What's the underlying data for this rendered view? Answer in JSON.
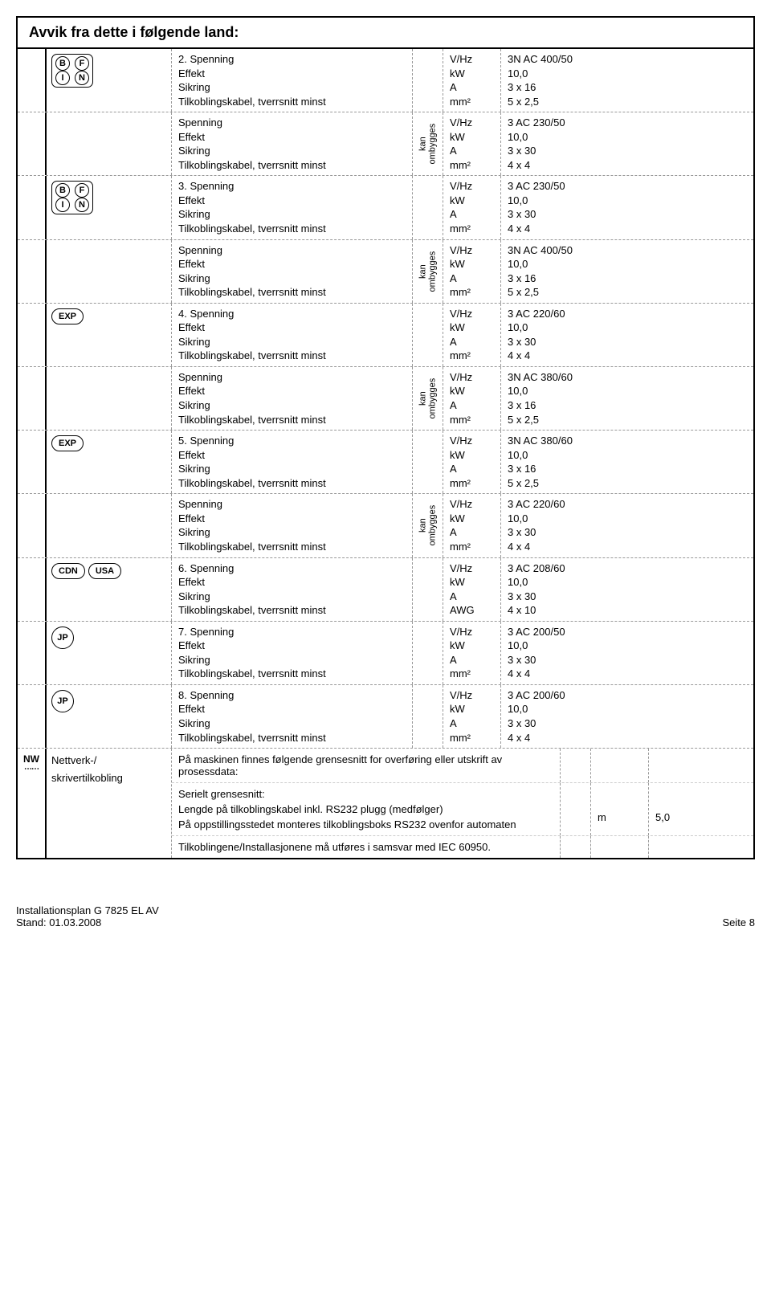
{
  "title": "Avvik fra dette i følgende land:",
  "footer": {
    "left1": "Installationsplan G 7825 EL AV",
    "left2": "Stand: 01.03.2008",
    "right": "Seite 8"
  },
  "labelset": {
    "spenning": "Spenning",
    "effekt": "Effekt",
    "sikring": "Sikring",
    "tilk": "Tilkoblingskabel, tverrsnitt minst"
  },
  "units": {
    "vhz": "V/Hz",
    "kw": "kW",
    "a": "A",
    "mm2": "mm²",
    "awg": "AWG",
    "m": "m"
  },
  "rot": {
    "l1": "kan",
    "l2": "ombygges"
  },
  "rows": [
    {
      "num": "2.",
      "badges_bfin": true,
      "v": {
        "r1": "3N AC 400/50",
        "r2": "10,0",
        "r3": "3 x 16",
        "r4": "5 x 2,5"
      }
    },
    {
      "alt": true,
      "v": {
        "r1": "3 AC 230/50",
        "r2": "10,0",
        "r3": "3 x 30",
        "r4": "4 x 4"
      }
    },
    {
      "num": "3.",
      "badges_bfin": true,
      "v": {
        "r1": "3 AC 230/50",
        "r2": "10,0",
        "r3": "3 x 30",
        "r4": "4 x 4"
      }
    },
    {
      "alt": true,
      "v": {
        "r1": "3N AC 400/50",
        "r2": "10,0",
        "r3": "3 x 16",
        "r4": "5 x 2,5"
      }
    },
    {
      "num": "4.",
      "badge_oval": "EXP",
      "v": {
        "r1": "3 AC 220/60",
        "r2": "10,0",
        "r3": "3 x 30",
        "r4": "4 x 4"
      }
    },
    {
      "alt": true,
      "v": {
        "r1": "3N AC 380/60",
        "r2": "10,0",
        "r3": "3 x 16",
        "r4": "5 x 2,5"
      }
    },
    {
      "num": "5.",
      "badge_oval": "EXP",
      "v": {
        "r1": "3N AC 380/60",
        "r2": "10,0",
        "r3": "3 x 16",
        "r4": "5 x 2,5"
      }
    },
    {
      "alt": true,
      "v": {
        "r1": "3 AC 220/60",
        "r2": "10,0",
        "r3": "3 x 30",
        "r4": "4 x 4"
      }
    },
    {
      "num": "6.",
      "badge_ovals": [
        "CDN",
        "USA"
      ],
      "unit4": "AWG",
      "v": {
        "r1": "3 AC 208/60",
        "r2": "10,0",
        "r3": "3 x 30",
        "r4": "4 x 10"
      }
    },
    {
      "num": "7.",
      "badge_circ": "JP",
      "v": {
        "r1": "3 AC 200/50",
        "r2": "10,0",
        "r3": "3 x 30",
        "r4": "4 x 4"
      }
    },
    {
      "num": "8.",
      "badge_circ": "JP",
      "v": {
        "r1": "3 AC 200/60",
        "r2": "10,0",
        "r3": "3 x 30",
        "r4": "4 x 4"
      }
    }
  ],
  "network": {
    "sidelabel_l1": "Nettverk-/",
    "sidelabel_l2": "skrivertilkobling",
    "p1": "På maskinen finnes følgende grensesnitt for overføring eller utskrift av prosessdata:",
    "p2_title": "Serielt grensesnitt:",
    "p2_l1": "Lengde på tilkoblingskabel inkl. RS232 plugg (medfølger)",
    "p2_l2": "På oppstillingsstedet monteres tilkoblingsboks RS232 ovenfor automaten",
    "p2_unit": "m",
    "p2_val": "5,0",
    "p3": "Tilkoblingene/Installasjonene må utføres i samsvar med IEC 60950."
  }
}
